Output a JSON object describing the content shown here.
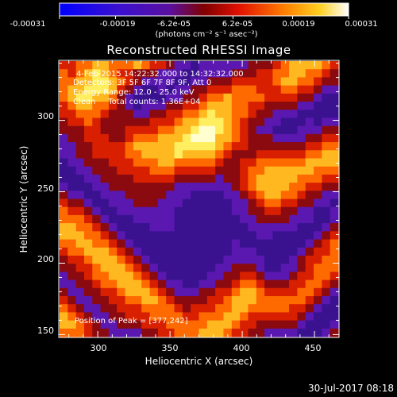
{
  "colorbar": {
    "tick_labels": [
      "-0.00031",
      "-0.00019",
      "-6.2e-05",
      "6.2e-05",
      "0.00019",
      "0.00031"
    ],
    "units": "(photons cm⁻² s⁻¹ asec⁻²)"
  },
  "plot": {
    "title": "Reconstructed RHESSI Image",
    "xlabel": "Heliocentric X (arcsec)",
    "ylabel": "Heliocentric Y (arcsec)",
    "x_ticks": [
      "300",
      "350",
      "400",
      "450"
    ],
    "y_ticks": [
      "150",
      "200",
      "250",
      "300"
    ]
  },
  "overlay": {
    "line1": "4-Feb-2015 14:22:32.000 to 14:32:32.000",
    "line2": "Detectors: 3F 5F 6F 7F 8F 9F, Att 0",
    "line3": "Energy Range: 12.0 - 25.0 keV",
    "line4": "Clean     Total counts: 1.36E+04",
    "peak": "Position of Peak = [377,242]"
  },
  "footer": {
    "timestamp": "30-Jul-2017 08:18"
  },
  "chart_data": {
    "type": "heatmap",
    "title": "Reconstructed RHESSI Image",
    "xlabel": "Heliocentric X (arcsec)",
    "ylabel": "Heliocentric Y (arcsec)",
    "xlim": [
      273,
      467
    ],
    "ylim": [
      148,
      342
    ],
    "x_ticks": [
      300,
      350,
      400,
      450
    ],
    "y_ticks": [
      150,
      200,
      250,
      300
    ],
    "colorbar_range": [
      -0.00031,
      0.00031
    ],
    "colorbar_ticks": [
      -0.00031,
      -0.00019,
      -6.2e-05,
      6.2e-05,
      0.00019,
      0.00031
    ],
    "colormap": [
      "#0000ff",
      "#4010c0",
      "#800000",
      "#ff3000",
      "#ff9000",
      "#ffff40",
      "#ffffff"
    ],
    "grid": false,
    "peak_position": [
      377,
      242
    ],
    "image_rows_top_to_bottom": [
      "4455665556544322122222233345666654",
      "5456765443332221122223334455665543",
      "5566776543222211223334444456655433",
      "5667776432112122334445554445544322",
      "5677665321111223345565555444433211",
      "4566554321222334456665544333322111",
      "4455543332233445567665543322211111",
      "3445433333344456677765433221112122",
      "3334433344445566788765432211122233",
      "2334443345556667888665433322223344",
      "2233444456666677777654433333334455",
      "2233444455666676666543334444445566",
      "1223334445556655555433445555556666",
      "1122333444455544444333455666666555",
      "1112233334444433333233456666655544",
      "2111223333333322222223456666554433",
      "3221122233333222111122345665543322",
      "4332112223332221111112234554433221",
      "5443211222222211111112233443322112",
      "5554321112222211111111223333222112",
      "6655432111122211111111122222211123",
      "6665543211111111111111112211111234",
      "5566554321111111111112111111112345",
      "4556665432111111111112221111123445",
      "3445666543211111111122222111234455",
      "3344566654321111111223332112234555",
      "2334556665432111112233443222344554",
      "2233455666543221122334554333445543",
      "3223344566654322233445665444455432",
      "4322334455665433334456665555554321",
      "5432233444555543444556655555443211",
      "6543223344455554455566544444432111",
      "6654322333444555556665443333321112",
      "5554332222334455566654433222211123"
    ]
  }
}
